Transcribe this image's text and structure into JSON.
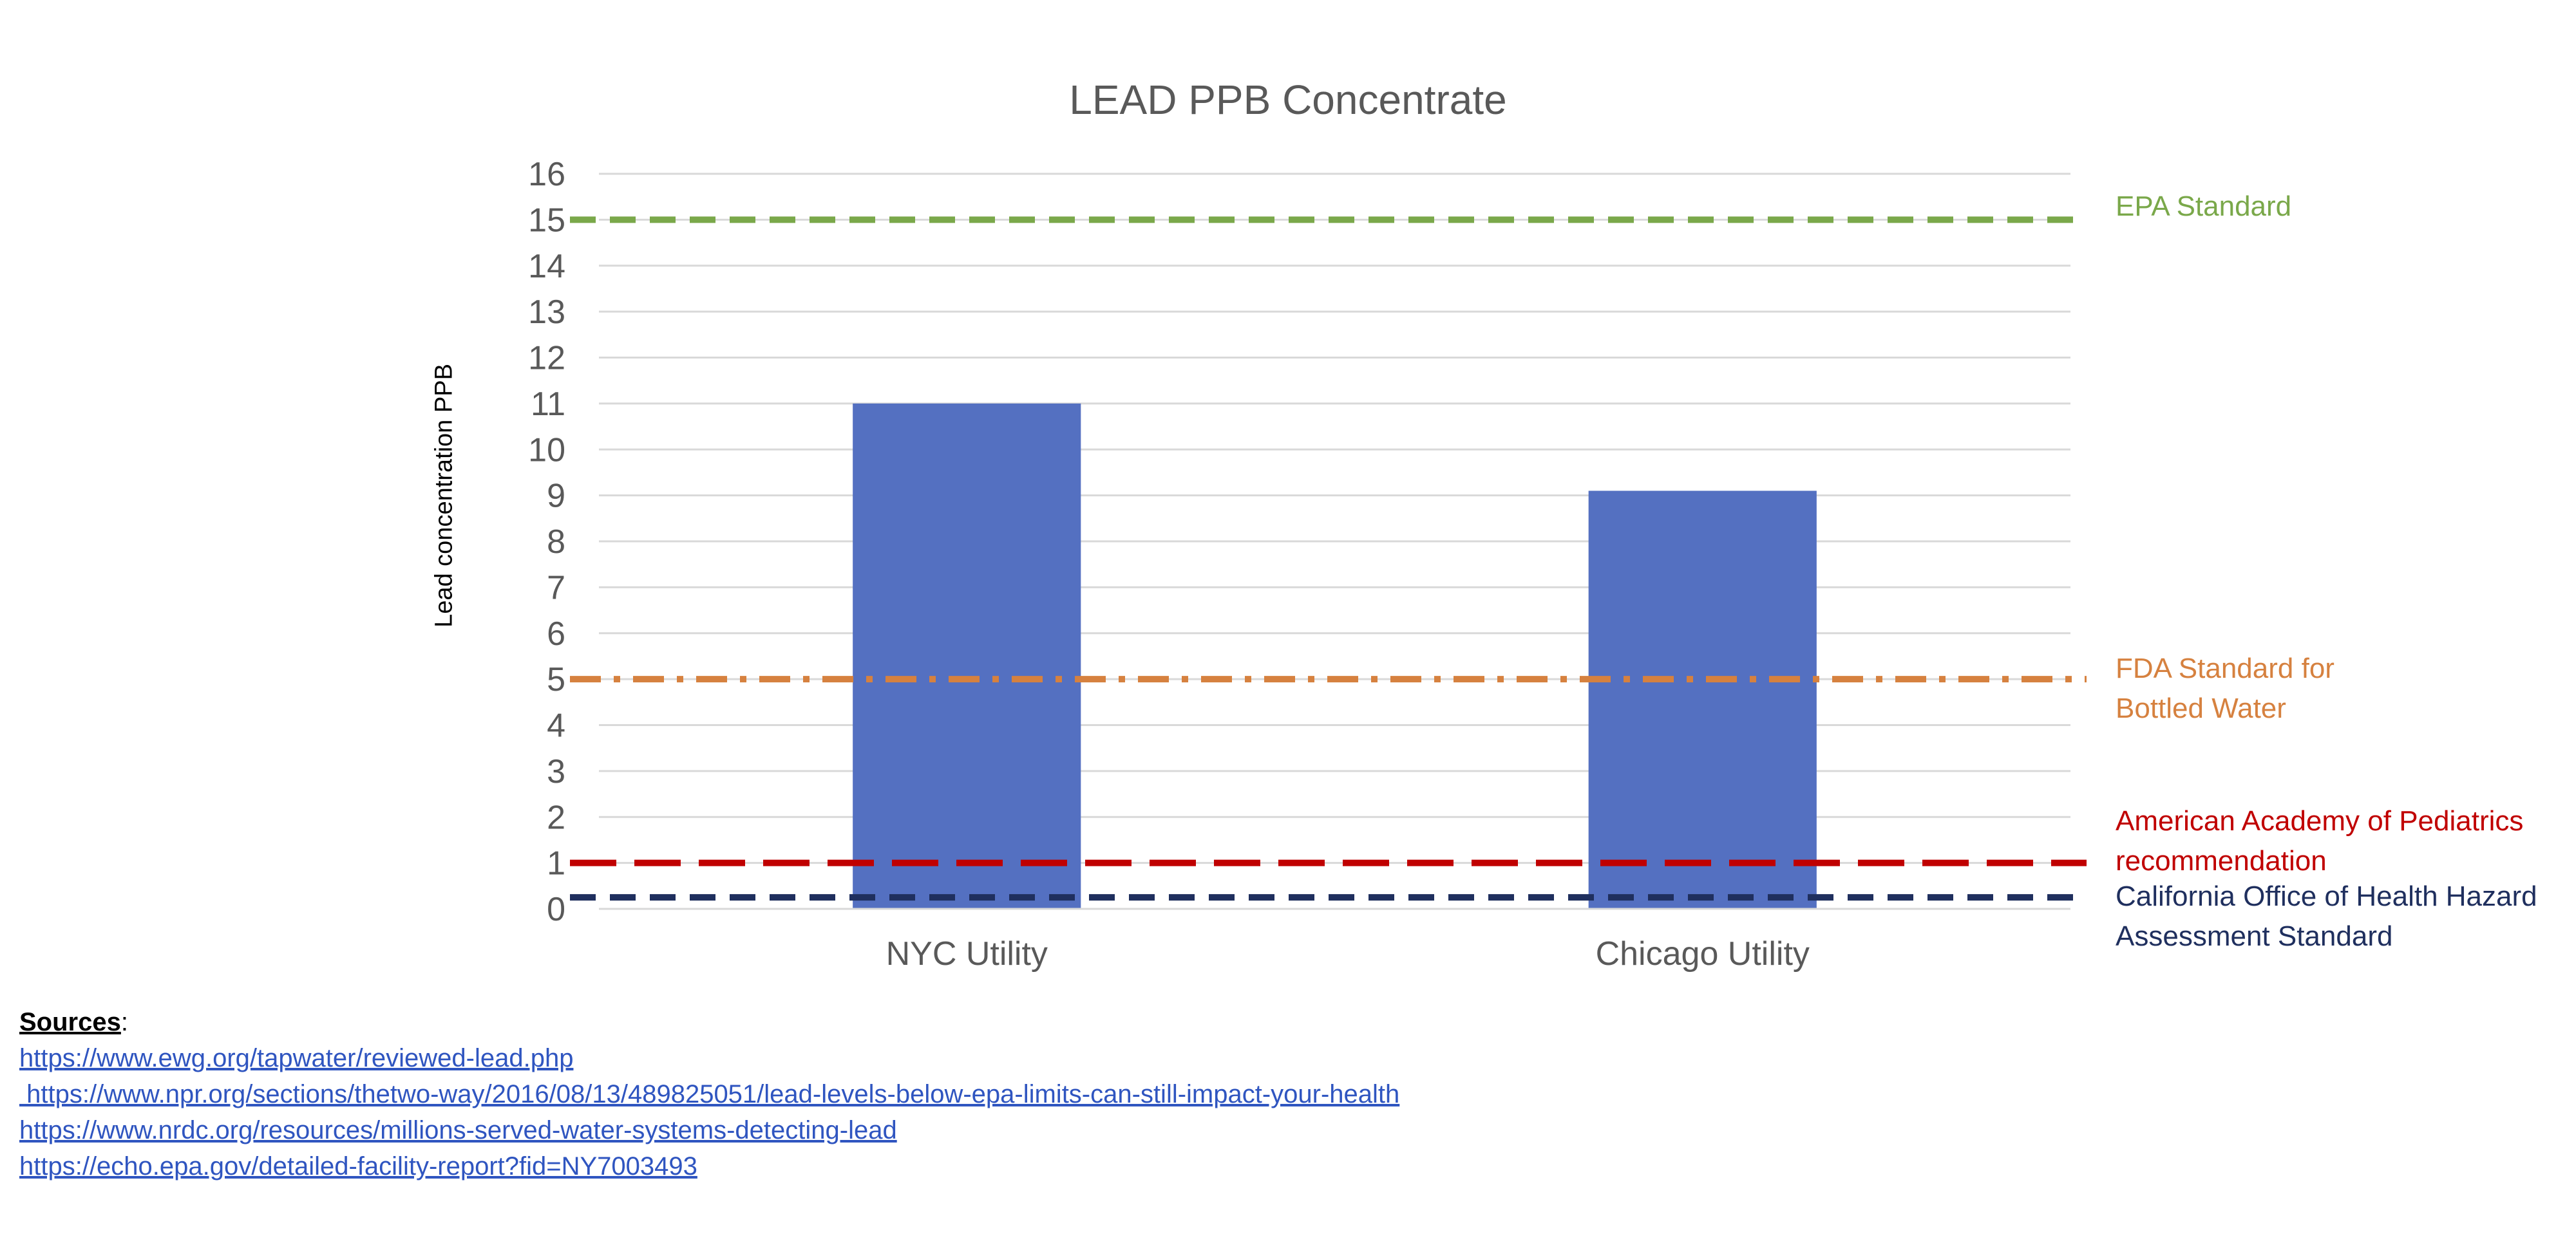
{
  "chart_data": {
    "type": "bar",
    "title": "LEAD PPB Concentrate",
    "ylabel": "Lead concentration PPB",
    "xlabel": "",
    "categories": [
      "NYC Utility",
      "Chicago Utility"
    ],
    "values": [
      11,
      9.1
    ],
    "ylim": [
      0,
      16
    ],
    "yticks": [
      0,
      1,
      2,
      3,
      4,
      5,
      6,
      7,
      8,
      9,
      10,
      11,
      12,
      13,
      14,
      15,
      16
    ],
    "grid": true,
    "bar_color": "#5470c1",
    "reference_lines": [
      {
        "label": "EPA Standard",
        "value": 15,
        "color": "#7aa84a",
        "style": "dashed"
      },
      {
        "label": "FDA Standard for Bottled Water",
        "label_lines": [
          "FDA Standard for",
          "Bottled Water"
        ],
        "value": 5,
        "color": "#d6813f",
        "style": "dash-dot"
      },
      {
        "label": "American Academy of Pediatrics recommendation",
        "label_lines": [
          "American Academy of Pediatrics",
          "recommendation"
        ],
        "value": 1,
        "color": "#c00000",
        "style": "long-dash"
      },
      {
        "label": "California Office of Health Hazard Assessment Standard",
        "label_lines": [
          "California Office of Health Hazard",
          "Assessment Standard"
        ],
        "value": 0.25,
        "color": "#1f2f5e",
        "style": "dashed"
      }
    ]
  },
  "sources": {
    "heading": "Sources",
    "heading_suffix": ":",
    "links": [
      "https://www.ewg.org/tapwater/reviewed-lead.php",
      " https://www.npr.org/sections/thetwo-way/2016/08/13/489825051/lead-levels-below-epa-limits-can-still-impact-your-health",
      "https://www.nrdc.org/resources/millions-served-water-systems-detecting-lead",
      "https://echo.epa.gov/detailed-facility-report?fid=NY7003493"
    ]
  }
}
